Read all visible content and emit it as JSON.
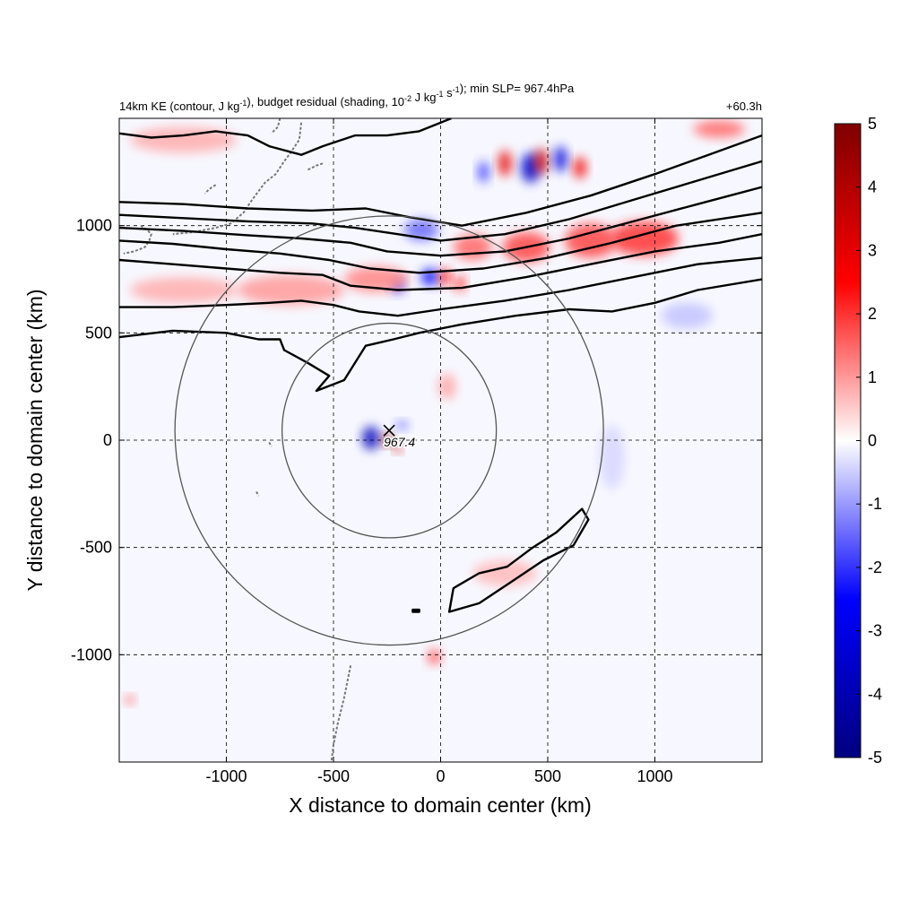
{
  "chart_data": {
    "type": "heatmap",
    "title_left": "14km KE (contour, J kg{sup:-1}), budget residual (shading, 10{sup:-2} J kg{sup:-1} s{sup:-1}); min SLP= 967.4hPa",
    "title_left_parts": [
      {
        "t": "14km KE (contour, J kg"
      },
      {
        "t": "-1",
        "sup": true
      },
      {
        "t": "), budget residual (shading, 10"
      },
      {
        "t": "-2",
        "sup": true
      },
      {
        "t": " J kg"
      },
      {
        "t": "-1",
        "sup": true
      },
      {
        "t": " s"
      },
      {
        "t": "-1",
        "sup": true
      },
      {
        "t": "); min SLP= 967.4hPa"
      }
    ],
    "title_right": "+60.3h",
    "xlabel": "X distance to domain center (km)",
    "ylabel": "Y distance to domain center (km)",
    "xlim": [
      -1500,
      1500
    ],
    "ylim": [
      -1500,
      1500
    ],
    "xticks": [
      -1000,
      -500,
      0,
      500,
      1000
    ],
    "yticks": [
      -1000,
      -500,
      0,
      500,
      1000
    ],
    "xtick_labels": [
      "-1000",
      "-500",
      "0",
      "500",
      "1000"
    ],
    "ytick_labels": [
      "-1000",
      "-500",
      "0",
      "500",
      "1000"
    ],
    "grid": true,
    "grid_style": "dashed",
    "storm_center": {
      "x": -240,
      "y": 45,
      "label": "967.4",
      "marker": "x"
    },
    "range_circles": [
      {
        "center_x": -240,
        "center_y": 45,
        "radius_km": 500
      },
      {
        "center_x": -240,
        "center_y": 45,
        "radius_km": 1000
      }
    ],
    "colorbar": {
      "min": -5,
      "max": 5,
      "ticks": [
        5,
        4,
        3,
        2,
        1,
        0,
        -1,
        -2,
        -3,
        -4,
        -5
      ],
      "tick_labels": [
        "5",
        "4",
        "3",
        "2",
        "1",
        "0",
        "-1",
        "-2",
        "-3",
        "-4",
        "-5"
      ],
      "colors": [
        "#00007f",
        "#0000ff",
        "#ffffff",
        "#ff0000",
        "#7f0000"
      ],
      "placement": "right"
    },
    "ke_contours": [
      [
        [
          -1500,
          1110
        ],
        [
          -1200,
          1100
        ],
        [
          -900,
          1080
        ],
        [
          -600,
          1070
        ],
        [
          -350,
          1080
        ],
        [
          -150,
          1040
        ],
        [
          100,
          1000
        ],
        [
          400,
          1060
        ],
        [
          700,
          1140
        ],
        [
          1000,
          1240
        ],
        [
          1250,
          1330
        ],
        [
          1500,
          1420
        ]
      ],
      [
        [
          -1500,
          1050
        ],
        [
          -1200,
          1035
        ],
        [
          -900,
          1020
        ],
        [
          -600,
          1010
        ],
        [
          -400,
          990
        ],
        [
          -200,
          960
        ],
        [
          0,
          930
        ],
        [
          300,
          960
        ],
        [
          600,
          1030
        ],
        [
          900,
          1120
        ],
        [
          1200,
          1210
        ],
        [
          1500,
          1300
        ]
      ],
      [
        [
          -1500,
          990
        ],
        [
          -1200,
          975
        ],
        [
          -900,
          955
        ],
        [
          -650,
          940
        ],
        [
          -420,
          920
        ],
        [
          -250,
          880
        ],
        [
          0,
          860
        ],
        [
          300,
          880
        ],
        [
          600,
          940
        ],
        [
          900,
          1020
        ],
        [
          1200,
          1100
        ],
        [
          1500,
          1180
        ]
      ],
      [
        [
          -1500,
          930
        ],
        [
          -1250,
          915
        ],
        [
          -1000,
          890
        ],
        [
          -750,
          870
        ],
        [
          -520,
          840
        ],
        [
          -330,
          800
        ],
        [
          -100,
          780
        ],
        [
          200,
          800
        ],
        [
          500,
          850
        ],
        [
          800,
          920
        ],
        [
          1100,
          1000
        ],
        [
          1500,
          1060
        ]
      ],
      [
        [
          -1500,
          840
        ],
        [
          -1250,
          820
        ],
        [
          -1000,
          800
        ],
        [
          -750,
          780
        ],
        [
          -550,
          770
        ],
        [
          -420,
          720
        ],
        [
          -200,
          700
        ],
        [
          100,
          710
        ],
        [
          400,
          760
        ],
        [
          700,
          820
        ],
        [
          1000,
          880
        ],
        [
          1300,
          920
        ],
        [
          1500,
          960
        ]
      ],
      [
        [
          -1500,
          620
        ],
        [
          -1250,
          620
        ],
        [
          -1000,
          630
        ],
        [
          -800,
          640
        ],
        [
          -650,
          650
        ],
        [
          -500,
          630
        ],
        [
          -380,
          600
        ],
        [
          -200,
          580
        ],
        [
          0,
          610
        ],
        [
          300,
          650
        ],
        [
          600,
          700
        ],
        [
          900,
          760
        ],
        [
          1200,
          820
        ],
        [
          1500,
          850
        ]
      ],
      [
        [
          -1500,
          480
        ],
        [
          -1250,
          510
        ],
        [
          -1000,
          500
        ],
        [
          -850,
          470
        ],
        [
          -750,
          470
        ],
        [
          -730,
          420
        ],
        [
          -620,
          360
        ],
        [
          -520,
          300
        ],
        [
          -580,
          230
        ],
        [
          -450,
          280
        ],
        [
          -350,
          440
        ],
        [
          -220,
          470
        ],
        [
          -100,
          500
        ],
        [
          100,
          540
        ],
        [
          350,
          580
        ],
        [
          600,
          610
        ],
        [
          800,
          600
        ],
        [
          1000,
          640
        ],
        [
          1200,
          700
        ],
        [
          1500,
          750
        ]
      ],
      [
        [
          -1500,
          1430
        ],
        [
          -1350,
          1410
        ],
        [
          -1200,
          1420
        ],
        [
          -1050,
          1440
        ],
        [
          -900,
          1420
        ],
        [
          -800,
          1370
        ],
        [
          -650,
          1330
        ],
        [
          -550,
          1370
        ],
        [
          -400,
          1420
        ],
        [
          -250,
          1420
        ],
        [
          -100,
          1440
        ],
        [
          50,
          1500
        ]
      ]
    ],
    "ke_closed_contours": [
      [
        [
          40,
          -800
        ],
        [
          60,
          -690
        ],
        [
          180,
          -620
        ],
        [
          310,
          -590
        ],
        [
          430,
          -500
        ],
        [
          540,
          -430
        ],
        [
          660,
          -320
        ],
        [
          690,
          -370
        ],
        [
          620,
          -490
        ],
        [
          480,
          -560
        ],
        [
          330,
          -660
        ],
        [
          180,
          -760
        ],
        [
          40,
          -800
        ]
      ],
      [
        [
          -130,
          -800
        ],
        [
          -100,
          -800
        ],
        [
          -100,
          -790
        ],
        [
          -130,
          -790
        ],
        [
          -130,
          -800
        ]
      ]
    ],
    "residual_features": [
      {
        "x": -325,
        "y": 10,
        "rx": 40,
        "ry": 55,
        "value": -3.8
      },
      {
        "x": -250,
        "y": 0,
        "rx": 25,
        "ry": 25,
        "value": 4.6
      },
      {
        "x": -200,
        "y": -40,
        "rx": 18,
        "ry": 18,
        "value": 3.5
      },
      {
        "x": -180,
        "y": 70,
        "rx": 30,
        "ry": 20,
        "value": -1.5
      },
      {
        "x": 420,
        "y": 1270,
        "rx": 45,
        "ry": 70,
        "value": -3.5
      },
      {
        "x": 470,
        "y": 1300,
        "rx": 30,
        "ry": 60,
        "value": 3.4
      },
      {
        "x": 300,
        "y": 1290,
        "rx": 30,
        "ry": 60,
        "value": 3.0
      },
      {
        "x": 560,
        "y": 1310,
        "rx": 30,
        "ry": 60,
        "value": -3.2
      },
      {
        "x": 650,
        "y": 1270,
        "rx": 30,
        "ry": 50,
        "value": 2.8
      },
      {
        "x": 200,
        "y": 1250,
        "rx": 25,
        "ry": 50,
        "value": -2.0
      },
      {
        "x": 950,
        "y": 940,
        "rx": 160,
        "ry": 80,
        "value": 2.0
      },
      {
        "x": 700,
        "y": 930,
        "rx": 120,
        "ry": 80,
        "value": 1.8
      },
      {
        "x": 400,
        "y": 900,
        "rx": 110,
        "ry": 70,
        "value": 1.8
      },
      {
        "x": 150,
        "y": 900,
        "rx": 90,
        "ry": 60,
        "value": 1.5
      },
      {
        "x": -50,
        "y": 760,
        "rx": 40,
        "ry": 40,
        "value": -2.5
      },
      {
        "x": 20,
        "y": 760,
        "rx": 25,
        "ry": 40,
        "value": 2.5
      },
      {
        "x": -200,
        "y": 720,
        "rx": 30,
        "ry": 35,
        "value": -2.0
      },
      {
        "x": 90,
        "y": 730,
        "rx": 25,
        "ry": 35,
        "value": 2.2
      },
      {
        "x": -90,
        "y": 980,
        "rx": 80,
        "ry": 50,
        "value": -1.5
      },
      {
        "x": -300,
        "y": 750,
        "rx": 150,
        "ry": 60,
        "value": 1.2
      },
      {
        "x": -700,
        "y": 700,
        "rx": 250,
        "ry": 70,
        "value": 1.0
      },
      {
        "x": -1200,
        "y": 700,
        "rx": 250,
        "ry": 60,
        "value": 0.8
      },
      {
        "x": -1200,
        "y": 1400,
        "rx": 250,
        "ry": 60,
        "value": 0.8
      },
      {
        "x": 30,
        "y": 250,
        "rx": 40,
        "ry": 60,
        "value": 0.9
      },
      {
        "x": -30,
        "y": -1010,
        "rx": 30,
        "ry": 35,
        "value": 1.8
      },
      {
        "x": -1450,
        "y": -1210,
        "rx": 20,
        "ry": 20,
        "value": 1.8
      },
      {
        "x": 300,
        "y": -620,
        "rx": 150,
        "ry": 60,
        "value": 0.7
      },
      {
        "x": 1150,
        "y": 580,
        "rx": 120,
        "ry": 60,
        "value": -0.6
      },
      {
        "x": 800,
        "y": -80,
        "rx": 60,
        "ry": 150,
        "value": -0.4
      },
      {
        "x": 1300,
        "y": 1450,
        "rx": 120,
        "ry": 40,
        "value": 1.5
      }
    ],
    "coastline_paths": [
      [
        [
          -650,
          1480
        ],
        [
          -660,
          1400
        ],
        [
          -700,
          1340
        ],
        [
          -730,
          1300
        ],
        [
          -770,
          1240
        ],
        [
          -820,
          1200
        ],
        [
          -880,
          1120
        ],
        [
          -920,
          1060
        ],
        [
          -980,
          1010
        ],
        [
          -1050,
          990
        ],
        [
          -1150,
          970
        ],
        [
          -1250,
          960
        ]
      ],
      [
        [
          -1400,
          1000
        ],
        [
          -1370,
          980
        ],
        [
          -1350,
          960
        ],
        [
          -1360,
          930
        ],
        [
          -1380,
          900
        ],
        [
          -1430,
          880
        ],
        [
          -1480,
          870
        ]
      ],
      [
        [
          -1050,
          1190
        ],
        [
          -1080,
          1170
        ],
        [
          -1100,
          1150
        ]
      ],
      [
        [
          -550,
          1290
        ],
        [
          -580,
          1280
        ],
        [
          -620,
          1260
        ]
      ],
      [
        [
          -750,
          1500
        ],
        [
          -760,
          1460
        ],
        [
          -790,
          1430
        ]
      ],
      [
        [
          -800,
          -10
        ],
        [
          -790,
          -30
        ]
      ],
      [
        [
          -860,
          -240
        ],
        [
          -850,
          -260
        ]
      ],
      [
        [
          -420,
          -1050
        ],
        [
          -430,
          -1100
        ],
        [
          -450,
          -1200
        ],
        [
          -480,
          -1320
        ],
        [
          -500,
          -1420
        ],
        [
          -510,
          -1500
        ]
      ]
    ]
  }
}
